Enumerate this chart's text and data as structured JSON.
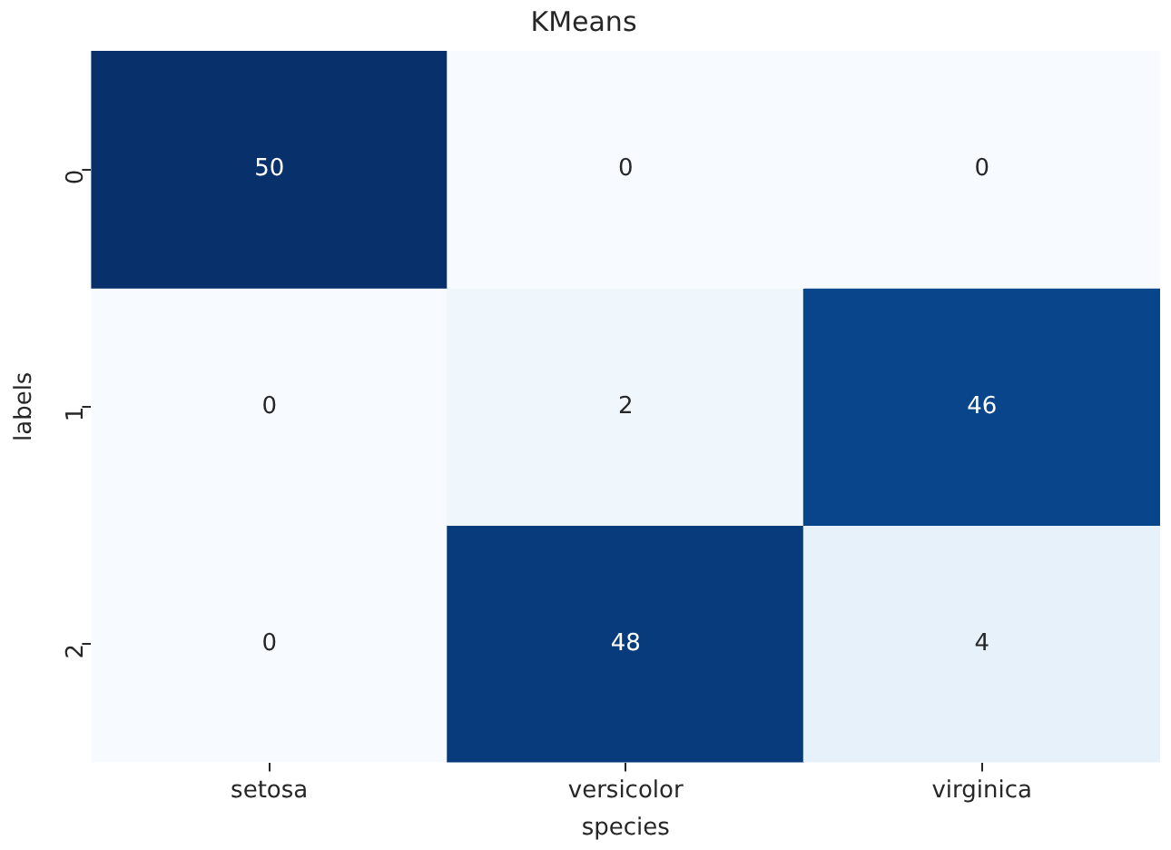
{
  "chart_data": {
    "type": "heatmap",
    "title": "KMeans",
    "xlabel": "species",
    "ylabel": "labels",
    "categories": [
      "setosa",
      "versicolor",
      "virginica"
    ],
    "y_categories": [
      "0",
      "1",
      "2"
    ],
    "cells": [
      [
        50,
        0,
        0
      ],
      [
        0,
        2,
        46
      ],
      [
        0,
        48,
        4
      ]
    ],
    "data_labels": true
  }
}
